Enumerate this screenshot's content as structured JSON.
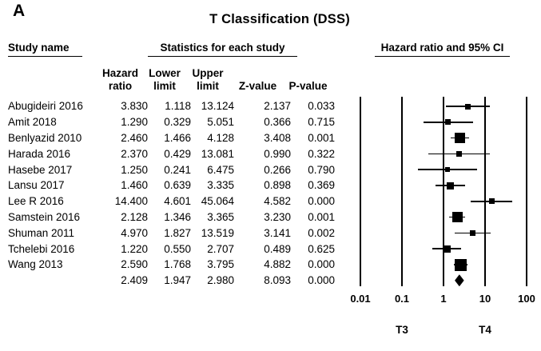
{
  "panel_label": "A",
  "title": "T Classification (DSS)",
  "table": {
    "header_study": "Study name",
    "header_stats": "Statistics for each study",
    "header_plot": "Hazard ratio and 95% CI",
    "columns": [
      "Hazard ratio",
      "Lower limit",
      "Upper limit",
      "Z-value",
      "P-value"
    ]
  },
  "chart_data": {
    "type": "forest",
    "title": "T Classification (DSS)",
    "x_scale": "log10",
    "xlim": [
      0.01,
      100
    ],
    "xticks": [
      0.01,
      0.1,
      1,
      10,
      100
    ],
    "xtick_labels": [
      "0.01",
      "0.1",
      "1",
      "10",
      "100"
    ],
    "footer_labels": [
      {
        "label": "T3",
        "x": 0.1
      },
      {
        "label": "T4",
        "x": 10
      }
    ],
    "studies": [
      {
        "name": "Abugideiri 2016",
        "hazard_ratio": 3.83,
        "lower": 1.118,
        "upper": 13.124,
        "z": 2.137,
        "p": 0.033,
        "marker_size": 7
      },
      {
        "name": "Amit 2018",
        "hazard_ratio": 1.29,
        "lower": 0.329,
        "upper": 5.051,
        "z": 0.366,
        "p": 0.715,
        "marker_size": 7
      },
      {
        "name": "Benlyazid 2010",
        "hazard_ratio": 2.46,
        "lower": 1.466,
        "upper": 4.128,
        "z": 3.408,
        "p": 0.001,
        "marker_size": 13
      },
      {
        "name": "Harada 2016",
        "hazard_ratio": 2.37,
        "lower": 0.429,
        "upper": 13.081,
        "z": 0.99,
        "p": 0.322,
        "marker_size": 7
      },
      {
        "name": "Hasebe 2017",
        "hazard_ratio": 1.25,
        "lower": 0.241,
        "upper": 6.475,
        "z": 0.266,
        "p": 0.79,
        "marker_size": 6
      },
      {
        "name": "Lansu 2017",
        "hazard_ratio": 1.46,
        "lower": 0.639,
        "upper": 3.335,
        "z": 0.898,
        "p": 0.369,
        "marker_size": 9
      },
      {
        "name": "Lee R 2016",
        "hazard_ratio": 14.4,
        "lower": 4.601,
        "upper": 45.064,
        "z": 4.582,
        "p": 0.0,
        "marker_size": 7
      },
      {
        "name": "Samstein 2016",
        "hazard_ratio": 2.128,
        "lower": 1.346,
        "upper": 3.365,
        "z": 3.23,
        "p": 0.001,
        "marker_size": 13
      },
      {
        "name": "Shuman 2011",
        "hazard_ratio": 4.97,
        "lower": 1.827,
        "upper": 13.519,
        "z": 3.141,
        "p": 0.002,
        "marker_size": 7
      },
      {
        "name": "Tchelebi 2016",
        "hazard_ratio": 1.22,
        "lower": 0.55,
        "upper": 2.707,
        "z": 0.489,
        "p": 0.625,
        "marker_size": 9
      },
      {
        "name": "Wang 2013",
        "hazard_ratio": 2.59,
        "lower": 1.768,
        "upper": 3.795,
        "z": 4.882,
        "p": 0.0,
        "marker_size": 15
      }
    ],
    "summary": {
      "hazard_ratio": 2.409,
      "lower": 1.947,
      "upper": 2.98,
      "z": 8.093,
      "p": 0.0
    }
  }
}
